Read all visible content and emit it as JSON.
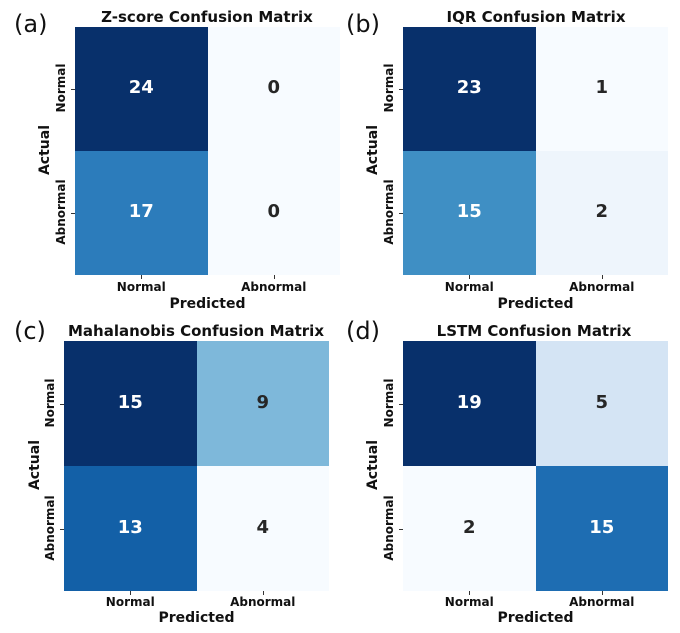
{
  "chart_data": [
    {
      "type": "heatmap",
      "panel_letter": "(a)",
      "title": "Z-score Confusion Matrix",
      "xlabel": "Predicted",
      "ylabel": "Actual",
      "x_categories": [
        "Normal",
        "Abnormal"
      ],
      "y_categories": [
        "Normal",
        "Abnormal"
      ],
      "values": [
        [
          24,
          0
        ],
        [
          17,
          0
        ]
      ],
      "colormap": "Blues"
    },
    {
      "type": "heatmap",
      "panel_letter": "(b)",
      "title": "IQR Confusion Matrix",
      "xlabel": "Predicted",
      "ylabel": "Actual",
      "x_categories": [
        "Normal",
        "Abnormal"
      ],
      "y_categories": [
        "Normal",
        "Abnormal"
      ],
      "values": [
        [
          23,
          1
        ],
        [
          15,
          2
        ]
      ],
      "colormap": "Blues"
    },
    {
      "type": "heatmap",
      "panel_letter": "(c)",
      "title": "Mahalanobis Confusion Matrix",
      "xlabel": "Predicted",
      "ylabel": "Actual",
      "x_categories": [
        "Normal",
        "Abnormal"
      ],
      "y_categories": [
        "Normal",
        "Abnormal"
      ],
      "values": [
        [
          15,
          9
        ],
        [
          13,
          4
        ]
      ],
      "colormap": "Blues"
    },
    {
      "type": "heatmap",
      "panel_letter": "(d)",
      "title": "LSTM Confusion Matrix",
      "xlabel": "Predicted",
      "ylabel": "Actual",
      "x_categories": [
        "Normal",
        "Abnormal"
      ],
      "y_categories": [
        "Normal",
        "Abnormal"
      ],
      "values": [
        [
          19,
          5
        ],
        [
          2,
          15
        ]
      ],
      "colormap": "Blues"
    }
  ],
  "colors": {
    "text_light": "#ffffff",
    "text_dark": "#262626"
  }
}
